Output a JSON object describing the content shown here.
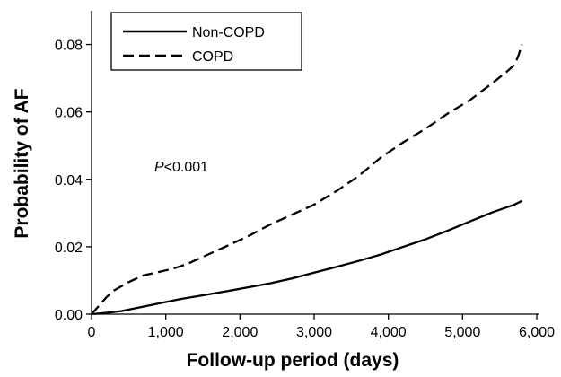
{
  "chart_data": {
    "type": "line",
    "title": "",
    "xlabel": "Follow-up period (days)",
    "ylabel": "Probability of AF",
    "xlim": [
      0,
      6000
    ],
    "ylim": [
      0,
      0.09
    ],
    "xticks": [
      0,
      1000,
      2000,
      3000,
      4000,
      5000,
      6000
    ],
    "xtick_labels": [
      "0",
      "1,000",
      "2,000",
      "3,000",
      "4,000",
      "5,000",
      "6,000"
    ],
    "yticks": [
      0.0,
      0.02,
      0.04,
      0.06,
      0.08
    ],
    "ytick_labels": [
      "0.00",
      "0.02",
      "0.04",
      "0.06",
      "0.08"
    ],
    "grid": false,
    "legend_position": "top-left",
    "annotation": {
      "italic_part": "P",
      "rest": "<0.001"
    },
    "series": [
      {
        "name": "Non-COPD",
        "style": "solid",
        "color": "#000000",
        "x": [
          0,
          200,
          400,
          600,
          800,
          1000,
          1200,
          1500,
          1800,
          2100,
          2400,
          2700,
          3000,
          3300,
          3600,
          3900,
          4200,
          4500,
          4800,
          5100,
          5400,
          5700,
          5800
        ],
        "y": [
          0.0,
          0.0004,
          0.0009,
          0.0018,
          0.0027,
          0.0036,
          0.0045,
          0.0056,
          0.0067,
          0.0079,
          0.0091,
          0.0106,
          0.0123,
          0.014,
          0.0158,
          0.0177,
          0.02,
          0.0222,
          0.0248,
          0.0275,
          0.0302,
          0.0325,
          0.0336
        ]
      },
      {
        "name": "COPD",
        "style": "dashed",
        "color": "#000000",
        "x": [
          0,
          100,
          200,
          300,
          500,
          700,
          900,
          1100,
          1300,
          1500,
          1800,
          2100,
          2400,
          2700,
          3000,
          3300,
          3600,
          3900,
          4200,
          4500,
          4800,
          5100,
          5400,
          5600,
          5700,
          5750,
          5800
        ],
        "y": [
          0.0,
          0.0025,
          0.005,
          0.007,
          0.0095,
          0.0115,
          0.0125,
          0.0135,
          0.015,
          0.017,
          0.02,
          0.023,
          0.0265,
          0.0295,
          0.0325,
          0.0365,
          0.041,
          0.0465,
          0.051,
          0.055,
          0.0595,
          0.0635,
          0.0685,
          0.072,
          0.074,
          0.0765,
          0.08
        ]
      }
    ]
  }
}
